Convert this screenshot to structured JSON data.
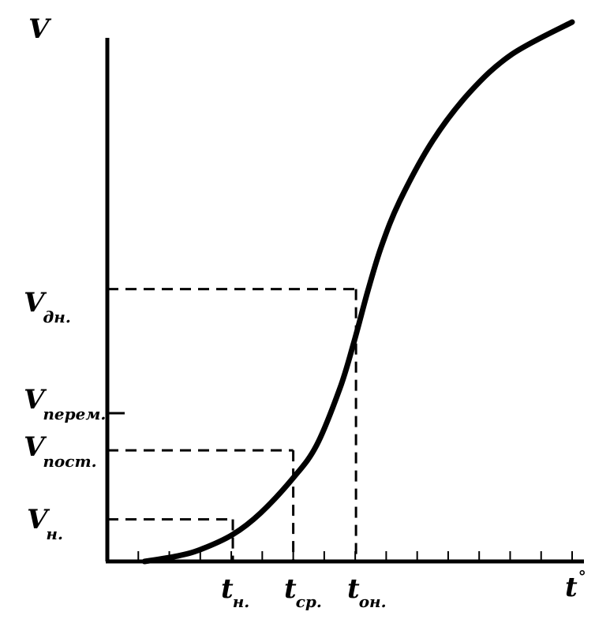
{
  "chart_data": {
    "type": "line",
    "curve": "sigmoid",
    "series": [
      {
        "values": [
          [
            0.08,
            0.0
          ],
          [
            0.15,
            0.01
          ],
          [
            0.2,
            0.022
          ],
          [
            0.27,
            0.05
          ],
          [
            0.33,
            0.09
          ],
          [
            0.4,
            0.155
          ],
          [
            0.45,
            0.215
          ],
          [
            0.5,
            0.32
          ],
          [
            0.53,
            0.405
          ],
          [
            0.56,
            0.5
          ],
          [
            0.59,
            0.585
          ],
          [
            0.63,
            0.67
          ],
          [
            0.7,
            0.78
          ],
          [
            0.78,
            0.87
          ],
          [
            0.87,
            0.94
          ],
          [
            1.0,
            1.0
          ]
        ]
      }
    ],
    "y_axis": {
      "title": {
        "main": "V",
        "sub": ""
      },
      "ticks": [
        {
          "key": "vn",
          "main": "V",
          "sub": "н.",
          "value": 0.078
        },
        {
          "key": "vpost",
          "main": "V",
          "sub": "пост.",
          "value": 0.206
        },
        {
          "key": "vperem",
          "main": "V",
          "sub": "перем.",
          "value": 0.276
        },
        {
          "key": "vdn",
          "main": "V",
          "sub": "дн.",
          "value": 0.505
        }
      ]
    },
    "x_axis": {
      "title": {
        "main": "t",
        "sub": "°"
      },
      "ticks": [
        {
          "key": "tn",
          "main": "t",
          "sub": "н.",
          "value": 0.27
        },
        {
          "key": "tsr",
          "main": "t",
          "sub": "ср.",
          "value": 0.4
        },
        {
          "key": "ton",
          "main": "t",
          "sub": "он.",
          "value": 0.535
        }
      ],
      "minor_ticks": 15
    },
    "guides": [
      {
        "x": 0.27,
        "y": 0.078
      },
      {
        "x": 0.4,
        "y": 0.206
      },
      {
        "x": 0.535,
        "y": 0.505
      }
    ],
    "xlim": [
      0,
      1
    ],
    "ylim": [
      0,
      1
    ],
    "grid": false,
    "legend": "none"
  }
}
